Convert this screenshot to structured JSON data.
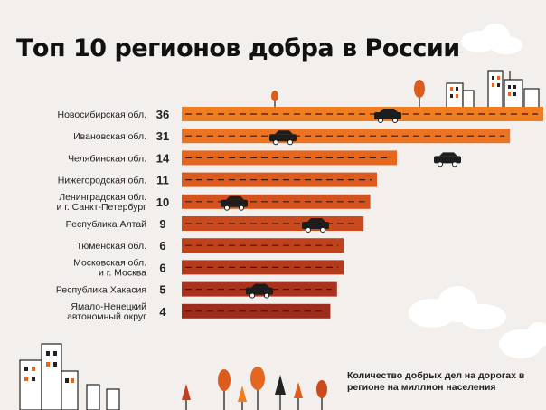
{
  "title": "Топ 10 регионов добра в России",
  "footnote": "Количество добрых дел на дорогах в регионе на миллион населения",
  "chart_data": {
    "type": "bar",
    "orientation": "horizontal",
    "title": "Топ 10 регионов добра в России",
    "categories": [
      [
        "Новосибирская обл."
      ],
      [
        "Ивановская обл."
      ],
      [
        "Челябинская обл."
      ],
      [
        "Нижегородская обл."
      ],
      [
        "Ленинградская обл.",
        "и г. Санкт-Петербург"
      ],
      [
        "Республика Алтай"
      ],
      [
        "Тюменская обл."
      ],
      [
        "Московская обл.",
        "и г. Москва"
      ],
      [
        "Республика Хакасия"
      ],
      [
        "Ямало-Ненецкий",
        "автономный округ"
      ]
    ],
    "values": [
      36,
      31,
      14,
      11,
      10,
      9,
      6,
      6,
      5,
      4
    ],
    "bar_colors": [
      "#ef7d22",
      "#ec7321",
      "#e4661f",
      "#dc5b1e",
      "#d4521e",
      "#cb4a1d",
      "#c0421d",
      "#b43a1e",
      "#a9331d",
      "#9c2c1c"
    ],
    "grid": false,
    "legend": "none"
  }
}
